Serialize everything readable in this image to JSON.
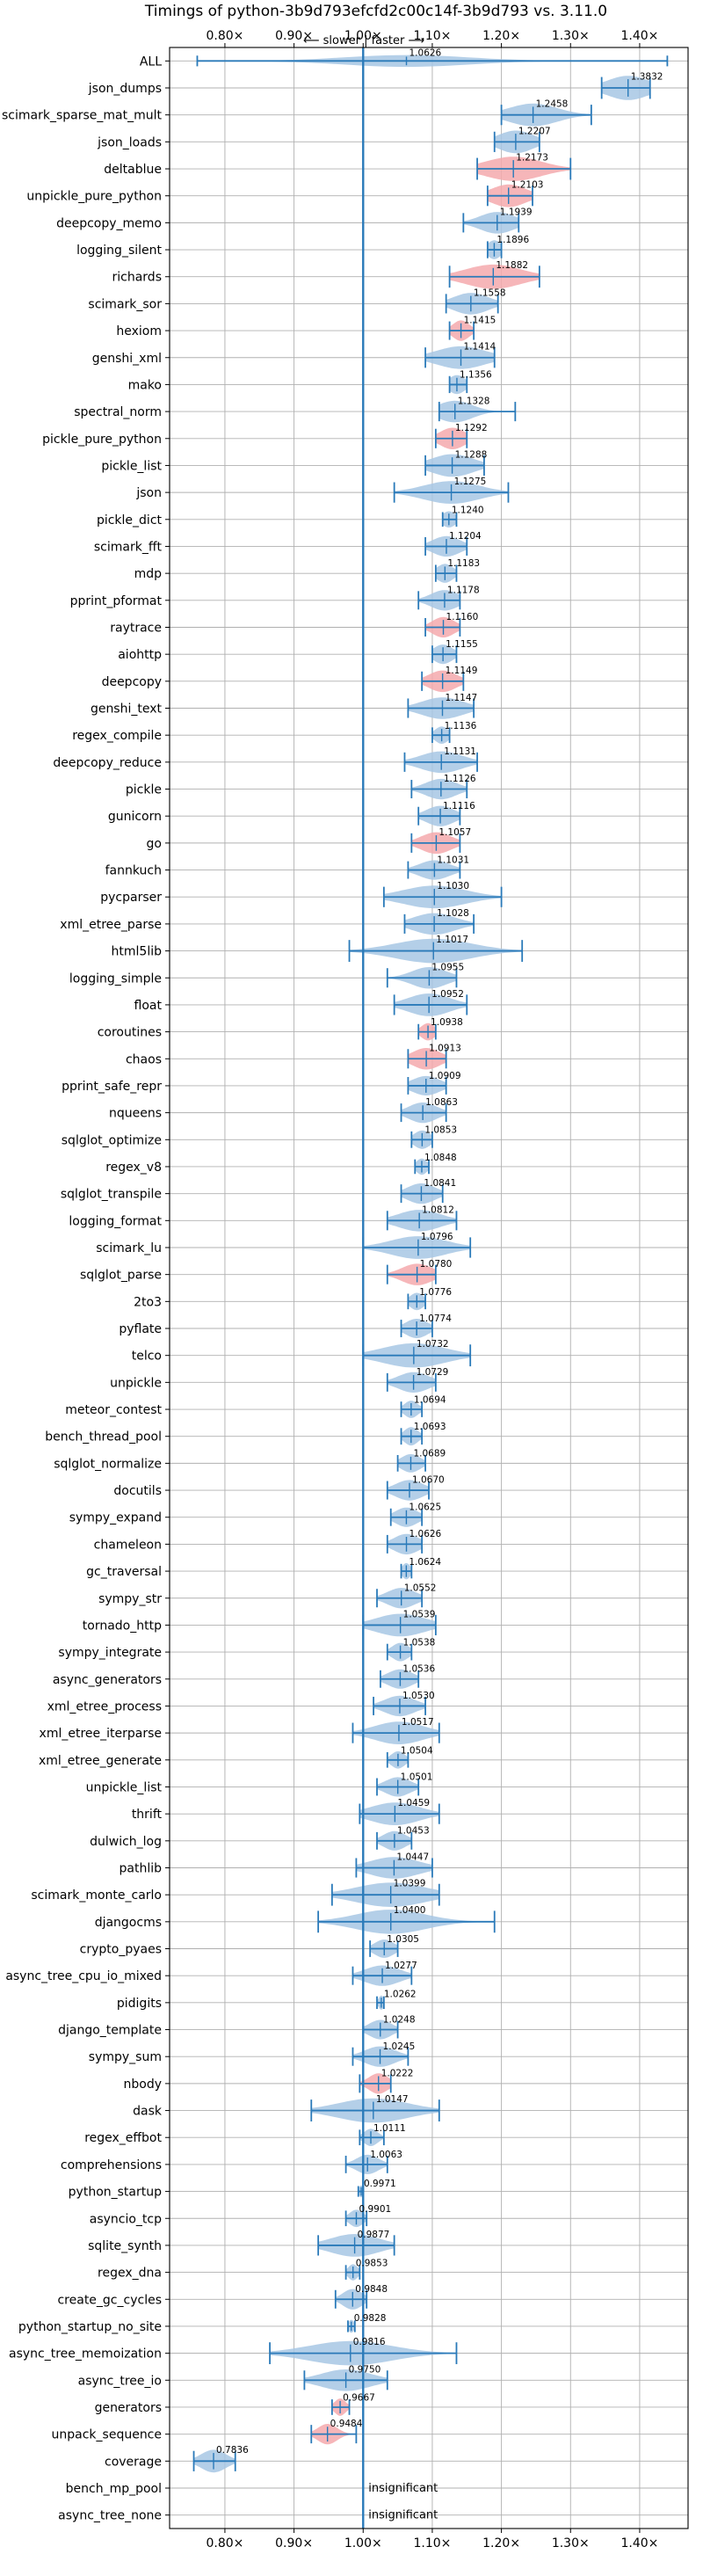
{
  "chart_data": {
    "type": "violin",
    "title": "Timings of python-3b9d793efcfd2c00c14f-3b9d793 vs. 3.11.0",
    "subtitle": "⟵ slower  |  faster ⟶",
    "xlim": [
      0.72,
      1.47
    ],
    "ticks": [
      0.8,
      0.9,
      1.0,
      1.1,
      1.2,
      1.3,
      1.4
    ],
    "tick_labels": [
      "0.80×",
      "0.90×",
      "1.00×",
      "1.10×",
      "1.20×",
      "1.30×",
      "1.40×"
    ],
    "reference_line": 1.0,
    "grid": true,
    "colors": {
      "faster": "#a7c7e4",
      "slower": "#f4a9ad",
      "line": "#2a7ab9"
    },
    "insignificant_label": "insignificant",
    "rows": [
      {
        "name": "ALL",
        "value": 1.0626,
        "label": "1.0626",
        "lo": 0.76,
        "hi": 1.44,
        "w": 0.22,
        "spread": 0.09,
        "dir": "faster"
      },
      {
        "name": "json_dumps",
        "value": 1.3832,
        "label": "1.3832",
        "lo": 1.345,
        "hi": 1.415,
        "w": 0.45,
        "spread": 0.03,
        "dir": "faster"
      },
      {
        "name": "scimark_sparse_mat_mult",
        "value": 1.2458,
        "label": "1.2458",
        "lo": 1.2,
        "hi": 1.33,
        "w": 0.42,
        "spread": 0.035,
        "dir": "faster"
      },
      {
        "name": "json_loads",
        "value": 1.2207,
        "label": "1.2207",
        "lo": 1.19,
        "hi": 1.255,
        "w": 0.42,
        "spread": 0.025,
        "dir": "faster"
      },
      {
        "name": "deltablue",
        "value": 1.2173,
        "label": "1.2173",
        "lo": 1.165,
        "hi": 1.3,
        "w": 0.45,
        "spread": 0.04,
        "dir": "slower"
      },
      {
        "name": "unpickle_pure_python",
        "value": 1.2103,
        "label": "1.2103",
        "lo": 1.18,
        "hi": 1.245,
        "w": 0.42,
        "spread": 0.025,
        "dir": "slower"
      },
      {
        "name": "deepcopy_memo",
        "value": 1.1939,
        "label": "1.1939",
        "lo": 1.145,
        "hi": 1.225,
        "w": 0.4,
        "spread": 0.025,
        "dir": "faster"
      },
      {
        "name": "logging_silent",
        "value": 1.1896,
        "label": "1.1896",
        "lo": 1.18,
        "hi": 1.2,
        "w": 0.35,
        "spread": 0.01,
        "dir": "faster"
      },
      {
        "name": "richards",
        "value": 1.1882,
        "label": "1.1882",
        "lo": 1.125,
        "hi": 1.255,
        "w": 0.45,
        "spread": 0.04,
        "dir": "slower"
      },
      {
        "name": "scimark_sor",
        "value": 1.1558,
        "label": "1.1558",
        "lo": 1.12,
        "hi": 1.195,
        "w": 0.4,
        "spread": 0.025,
        "dir": "faster"
      },
      {
        "name": "hexiom",
        "value": 1.1415,
        "label": "1.1415",
        "lo": 1.125,
        "hi": 1.16,
        "w": 0.38,
        "spread": 0.012,
        "dir": "slower"
      },
      {
        "name": "genshi_xml",
        "value": 1.1414,
        "label": "1.1414",
        "lo": 1.09,
        "hi": 1.19,
        "w": 0.42,
        "spread": 0.035,
        "dir": "faster"
      },
      {
        "name": "mako",
        "value": 1.1356,
        "label": "1.1356",
        "lo": 1.125,
        "hi": 1.15,
        "w": 0.35,
        "spread": 0.012,
        "dir": "faster"
      },
      {
        "name": "spectral_norm",
        "value": 1.1328,
        "label": "1.1328",
        "lo": 1.11,
        "hi": 1.22,
        "w": 0.4,
        "spread": 0.025,
        "dir": "faster"
      },
      {
        "name": "pickle_pure_python",
        "value": 1.1292,
        "label": "1.1292",
        "lo": 1.105,
        "hi": 1.15,
        "w": 0.4,
        "spread": 0.018,
        "dir": "slower"
      },
      {
        "name": "pickle_list",
        "value": 1.1288,
        "label": "1.1288",
        "lo": 1.09,
        "hi": 1.175,
        "w": 0.42,
        "spread": 0.03,
        "dir": "faster"
      },
      {
        "name": "json",
        "value": 1.1275,
        "label": "1.1275",
        "lo": 1.045,
        "hi": 1.21,
        "w": 0.42,
        "spread": 0.04,
        "dir": "faster"
      },
      {
        "name": "pickle_dict",
        "value": 1.124,
        "label": "1.1240",
        "lo": 1.115,
        "hi": 1.135,
        "w": 0.3,
        "spread": 0.01,
        "dir": "faster"
      },
      {
        "name": "scimark_fft",
        "value": 1.1204,
        "label": "1.1204",
        "lo": 1.09,
        "hi": 1.15,
        "w": 0.38,
        "spread": 0.02,
        "dir": "faster"
      },
      {
        "name": "mdp",
        "value": 1.1183,
        "label": "1.1183",
        "lo": 1.105,
        "hi": 1.135,
        "w": 0.35,
        "spread": 0.012,
        "dir": "faster"
      },
      {
        "name": "pprint_pformat",
        "value": 1.1178,
        "label": "1.1178",
        "lo": 1.08,
        "hi": 1.14,
        "w": 0.38,
        "spread": 0.02,
        "dir": "faster"
      },
      {
        "name": "raytrace",
        "value": 1.116,
        "label": "1.1160",
        "lo": 1.09,
        "hi": 1.14,
        "w": 0.38,
        "spread": 0.016,
        "dir": "slower"
      },
      {
        "name": "aiohttp",
        "value": 1.1155,
        "label": "1.1155",
        "lo": 1.1,
        "hi": 1.135,
        "w": 0.36,
        "spread": 0.014,
        "dir": "faster"
      },
      {
        "name": "deepcopy",
        "value": 1.1149,
        "label": "1.1149",
        "lo": 1.085,
        "hi": 1.145,
        "w": 0.4,
        "spread": 0.02,
        "dir": "slower"
      },
      {
        "name": "genshi_text",
        "value": 1.1147,
        "label": "1.1147",
        "lo": 1.065,
        "hi": 1.16,
        "w": 0.4,
        "spread": 0.03,
        "dir": "faster"
      },
      {
        "name": "regex_compile",
        "value": 1.1136,
        "label": "1.1136",
        "lo": 1.1,
        "hi": 1.125,
        "w": 0.32,
        "spread": 0.01,
        "dir": "faster"
      },
      {
        "name": "deepcopy_reduce",
        "value": 1.1131,
        "label": "1.1131",
        "lo": 1.06,
        "hi": 1.165,
        "w": 0.4,
        "spread": 0.03,
        "dir": "faster"
      },
      {
        "name": "pickle",
        "value": 1.1126,
        "label": "1.1126",
        "lo": 1.07,
        "hi": 1.15,
        "w": 0.38,
        "spread": 0.022,
        "dir": "faster"
      },
      {
        "name": "gunicorn",
        "value": 1.1116,
        "label": "1.1116",
        "lo": 1.08,
        "hi": 1.14,
        "w": 0.38,
        "spread": 0.02,
        "dir": "faster"
      },
      {
        "name": "go",
        "value": 1.1057,
        "label": "1.1057",
        "lo": 1.07,
        "hi": 1.14,
        "w": 0.4,
        "spread": 0.022,
        "dir": "slower"
      },
      {
        "name": "fannkuch",
        "value": 1.1031,
        "label": "1.1031",
        "lo": 1.065,
        "hi": 1.14,
        "w": 0.36,
        "spread": 0.022,
        "dir": "faster"
      },
      {
        "name": "pycparser",
        "value": 1.103,
        "label": "1.1030",
        "lo": 1.03,
        "hi": 1.2,
        "w": 0.42,
        "spread": 0.045,
        "dir": "faster"
      },
      {
        "name": "xml_etree_parse",
        "value": 1.1028,
        "label": "1.1028",
        "lo": 1.06,
        "hi": 1.16,
        "w": 0.4,
        "spread": 0.03,
        "dir": "faster"
      },
      {
        "name": "html5lib",
        "value": 1.1017,
        "label": "1.1017",
        "lo": 0.98,
        "hi": 1.23,
        "w": 0.45,
        "spread": 0.055,
        "dir": "faster"
      },
      {
        "name": "logging_simple",
        "value": 1.0955,
        "label": "1.0955",
        "lo": 1.035,
        "hi": 1.135,
        "w": 0.4,
        "spread": 0.025,
        "dir": "faster"
      },
      {
        "name": "float",
        "value": 1.0952,
        "label": "1.0952",
        "lo": 1.045,
        "hi": 1.15,
        "w": 0.42,
        "spread": 0.03,
        "dir": "faster"
      },
      {
        "name": "coroutines",
        "value": 1.0938,
        "label": "1.0938",
        "lo": 1.08,
        "hi": 1.105,
        "w": 0.32,
        "spread": 0.01,
        "dir": "slower"
      },
      {
        "name": "chaos",
        "value": 1.0913,
        "label": "1.0913",
        "lo": 1.065,
        "hi": 1.12,
        "w": 0.4,
        "spread": 0.02,
        "dir": "slower"
      },
      {
        "name": "pprint_safe_repr",
        "value": 1.0909,
        "label": "1.0909",
        "lo": 1.065,
        "hi": 1.12,
        "w": 0.36,
        "spread": 0.02,
        "dir": "faster"
      },
      {
        "name": "nqueens",
        "value": 1.0863,
        "label": "1.0863",
        "lo": 1.055,
        "hi": 1.12,
        "w": 0.38,
        "spread": 0.02,
        "dir": "faster"
      },
      {
        "name": "sqlglot_optimize",
        "value": 1.0853,
        "label": "1.0853",
        "lo": 1.07,
        "hi": 1.1,
        "w": 0.34,
        "spread": 0.012,
        "dir": "faster"
      },
      {
        "name": "regex_v8",
        "value": 1.0848,
        "label": "1.0848",
        "lo": 1.075,
        "hi": 1.095,
        "w": 0.3,
        "spread": 0.008,
        "dir": "faster"
      },
      {
        "name": "sqlglot_transpile",
        "value": 1.0841,
        "label": "1.0841",
        "lo": 1.055,
        "hi": 1.115,
        "w": 0.38,
        "spread": 0.02,
        "dir": "faster"
      },
      {
        "name": "logging_format",
        "value": 1.0812,
        "label": "1.0812",
        "lo": 1.035,
        "hi": 1.135,
        "w": 0.4,
        "spread": 0.03,
        "dir": "faster"
      },
      {
        "name": "scimark_lu",
        "value": 1.0796,
        "label": "1.0796",
        "lo": 1.0,
        "hi": 1.155,
        "w": 0.42,
        "spread": 0.04,
        "dir": "faster"
      },
      {
        "name": "sqlglot_parse",
        "value": 1.078,
        "label": "1.0780",
        "lo": 1.035,
        "hi": 1.105,
        "w": 0.4,
        "spread": 0.022,
        "dir": "slower"
      },
      {
        "name": "2to3",
        "value": 1.0776,
        "label": "1.0776",
        "lo": 1.065,
        "hi": 1.09,
        "w": 0.32,
        "spread": 0.01,
        "dir": "faster"
      },
      {
        "name": "pyflate",
        "value": 1.0774,
        "label": "1.0774",
        "lo": 1.055,
        "hi": 1.1,
        "w": 0.36,
        "spread": 0.016,
        "dir": "faster"
      },
      {
        "name": "telco",
        "value": 1.0732,
        "label": "1.0732",
        "lo": 1.0,
        "hi": 1.155,
        "w": 0.45,
        "spread": 0.045,
        "dir": "faster"
      },
      {
        "name": "unpickle",
        "value": 1.0729,
        "label": "1.0729",
        "lo": 1.035,
        "hi": 1.105,
        "w": 0.38,
        "spread": 0.022,
        "dir": "faster"
      },
      {
        "name": "meteor_contest",
        "value": 1.0694,
        "label": "1.0694",
        "lo": 1.055,
        "hi": 1.085,
        "w": 0.32,
        "spread": 0.01,
        "dir": "faster"
      },
      {
        "name": "bench_thread_pool",
        "value": 1.0693,
        "label": "1.0693",
        "lo": 1.055,
        "hi": 1.085,
        "w": 0.34,
        "spread": 0.01,
        "dir": "faster"
      },
      {
        "name": "sqlglot_normalize",
        "value": 1.0689,
        "label": "1.0689",
        "lo": 1.05,
        "hi": 1.09,
        "w": 0.34,
        "spread": 0.014,
        "dir": "faster"
      },
      {
        "name": "docutils",
        "value": 1.067,
        "label": "1.0670",
        "lo": 1.035,
        "hi": 1.095,
        "w": 0.38,
        "spread": 0.02,
        "dir": "faster"
      },
      {
        "name": "sympy_expand",
        "value": 1.0625,
        "label": "1.0625",
        "lo": 1.04,
        "hi": 1.085,
        "w": 0.36,
        "spread": 0.016,
        "dir": "faster"
      },
      {
        "name": "chameleon",
        "value": 1.0626,
        "label": "1.0626",
        "lo": 1.035,
        "hi": 1.085,
        "w": 0.38,
        "spread": 0.018,
        "dir": "faster"
      },
      {
        "name": "gc_traversal",
        "value": 1.0624,
        "label": "1.0624",
        "lo": 1.055,
        "hi": 1.07,
        "w": 0.3,
        "spread": 0.006,
        "dir": "faster"
      },
      {
        "name": "sympy_str",
        "value": 1.0552,
        "label": "1.0552",
        "lo": 1.02,
        "hi": 1.085,
        "w": 0.38,
        "spread": 0.02,
        "dir": "faster"
      },
      {
        "name": "tornado_http",
        "value": 1.0539,
        "label": "1.0539",
        "lo": 1.0,
        "hi": 1.105,
        "w": 0.42,
        "spread": 0.035,
        "dir": "faster"
      },
      {
        "name": "sympy_integrate",
        "value": 1.0538,
        "label": "1.0538",
        "lo": 1.035,
        "hi": 1.07,
        "w": 0.34,
        "spread": 0.012,
        "dir": "faster"
      },
      {
        "name": "async_generators",
        "value": 1.0536,
        "label": "1.0536",
        "lo": 1.025,
        "hi": 1.08,
        "w": 0.36,
        "spread": 0.018,
        "dir": "faster"
      },
      {
        "name": "xml_etree_process",
        "value": 1.053,
        "label": "1.0530",
        "lo": 1.015,
        "hi": 1.09,
        "w": 0.38,
        "spread": 0.022,
        "dir": "faster"
      },
      {
        "name": "xml_etree_iterparse",
        "value": 1.0517,
        "label": "1.0517",
        "lo": 0.985,
        "hi": 1.11,
        "w": 0.42,
        "spread": 0.035,
        "dir": "faster"
      },
      {
        "name": "xml_etree_generate",
        "value": 1.0504,
        "label": "1.0504",
        "lo": 1.035,
        "hi": 1.065,
        "w": 0.32,
        "spread": 0.01,
        "dir": "faster"
      },
      {
        "name": "unpickle_list",
        "value": 1.0501,
        "label": "1.0501",
        "lo": 1.02,
        "hi": 1.08,
        "w": 0.36,
        "spread": 0.018,
        "dir": "faster"
      },
      {
        "name": "thrift",
        "value": 1.0459,
        "label": "1.0459",
        "lo": 0.995,
        "hi": 1.11,
        "w": 0.42,
        "spread": 0.035,
        "dir": "faster"
      },
      {
        "name": "dulwich_log",
        "value": 1.0453,
        "label": "1.0453",
        "lo": 1.02,
        "hi": 1.07,
        "w": 0.36,
        "spread": 0.016,
        "dir": "faster"
      },
      {
        "name": "pathlib",
        "value": 1.0447,
        "label": "1.0447",
        "lo": 0.99,
        "hi": 1.1,
        "w": 0.4,
        "spread": 0.035,
        "dir": "faster"
      },
      {
        "name": "scimark_monte_carlo",
        "value": 1.0399,
        "label": "1.0399",
        "lo": 0.955,
        "hi": 1.11,
        "w": 0.45,
        "spread": 0.05,
        "dir": "faster"
      },
      {
        "name": "djangocms",
        "value": 1.04,
        "label": "1.0400",
        "lo": 0.935,
        "hi": 1.19,
        "w": 0.45,
        "spread": 0.05,
        "dir": "faster"
      },
      {
        "name": "crypto_pyaes",
        "value": 1.0305,
        "label": "1.0305",
        "lo": 1.01,
        "hi": 1.05,
        "w": 0.34,
        "spread": 0.014,
        "dir": "faster"
      },
      {
        "name": "async_tree_cpu_io_mixed",
        "value": 1.0277,
        "label": "1.0277",
        "lo": 0.985,
        "hi": 1.07,
        "w": 0.38,
        "spread": 0.025,
        "dir": "faster"
      },
      {
        "name": "pidigits",
        "value": 1.0262,
        "label": "1.0262",
        "lo": 1.02,
        "hi": 1.03,
        "w": 0.26,
        "spread": 0.004,
        "dir": "faster"
      },
      {
        "name": "django_template",
        "value": 1.0248,
        "label": "1.0248",
        "lo": 1.0,
        "hi": 1.05,
        "w": 0.36,
        "spread": 0.016,
        "dir": "faster"
      },
      {
        "name": "sympy_sum",
        "value": 1.0245,
        "label": "1.0245",
        "lo": 0.985,
        "hi": 1.065,
        "w": 0.38,
        "spread": 0.022,
        "dir": "faster"
      },
      {
        "name": "nbody",
        "value": 1.0222,
        "label": "1.0222",
        "lo": 0.995,
        "hi": 1.04,
        "w": 0.38,
        "spread": 0.014,
        "dir": "slower"
      },
      {
        "name": "dask",
        "value": 1.0147,
        "label": "1.0147",
        "lo": 0.925,
        "hi": 1.11,
        "w": 0.45,
        "spread": 0.05,
        "dir": "faster"
      },
      {
        "name": "regex_effbot",
        "value": 1.0111,
        "label": "1.0111",
        "lo": 0.995,
        "hi": 1.03,
        "w": 0.32,
        "spread": 0.01,
        "dir": "faster"
      },
      {
        "name": "comprehensions",
        "value": 1.0063,
        "label": "1.0063",
        "lo": 0.975,
        "hi": 1.035,
        "w": 0.36,
        "spread": 0.016,
        "dir": "faster"
      },
      {
        "name": "python_startup",
        "value": 0.9971,
        "label": "0.9971",
        "lo": 0.993,
        "hi": 1.0,
        "w": 0.22,
        "spread": 0.003,
        "dir": "faster"
      },
      {
        "name": "asyncio_tcp",
        "value": 0.9901,
        "label": "0.9901",
        "lo": 0.975,
        "hi": 1.005,
        "w": 0.32,
        "spread": 0.01,
        "dir": "faster"
      },
      {
        "name": "sqlite_synth",
        "value": 0.9877,
        "label": "0.9877",
        "lo": 0.935,
        "hi": 1.045,
        "w": 0.42,
        "spread": 0.035,
        "dir": "faster"
      },
      {
        "name": "regex_dna",
        "value": 0.9853,
        "label": "0.9853",
        "lo": 0.975,
        "hi": 0.995,
        "w": 0.3,
        "spread": 0.007,
        "dir": "faster"
      },
      {
        "name": "create_gc_cycles",
        "value": 0.9848,
        "label": "0.9848",
        "lo": 0.96,
        "hi": 1.005,
        "w": 0.38,
        "spread": 0.014,
        "dir": "faster"
      },
      {
        "name": "python_startup_no_site",
        "value": 0.9828,
        "label": "0.9828",
        "lo": 0.978,
        "hi": 0.988,
        "w": 0.24,
        "spread": 0.004,
        "dir": "faster"
      },
      {
        "name": "async_tree_memoization",
        "value": 0.9816,
        "label": "0.9816",
        "lo": 0.865,
        "hi": 1.135,
        "w": 0.45,
        "spread": 0.06,
        "dir": "faster"
      },
      {
        "name": "async_tree_io",
        "value": 0.975,
        "label": "0.9750",
        "lo": 0.915,
        "hi": 1.035,
        "w": 0.4,
        "spread": 0.035,
        "dir": "faster"
      },
      {
        "name": "generators",
        "value": 0.9667,
        "label": "0.9667",
        "lo": 0.955,
        "hi": 0.98,
        "w": 0.32,
        "spread": 0.008,
        "dir": "slower"
      },
      {
        "name": "unpack_sequence",
        "value": 0.9484,
        "label": "0.9484",
        "lo": 0.925,
        "hi": 0.99,
        "w": 0.38,
        "spread": 0.014,
        "dir": "slower"
      },
      {
        "name": "coverage",
        "value": 0.7836,
        "label": "0.7836",
        "lo": 0.755,
        "hi": 0.815,
        "w": 0.42,
        "spread": 0.018,
        "dir": "faster"
      },
      {
        "name": "bench_mp_pool",
        "value": null,
        "label": "",
        "insignificant": true
      },
      {
        "name": "async_tree_none",
        "value": null,
        "label": "",
        "insignificant": true
      }
    ]
  }
}
